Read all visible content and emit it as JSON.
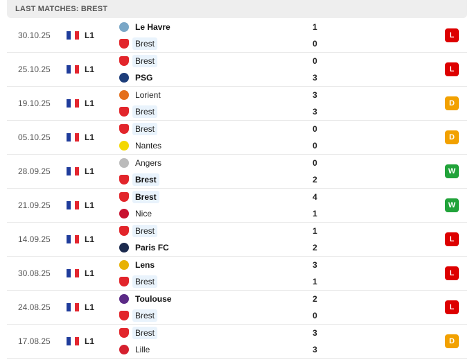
{
  "title": "LAST MATCHES: BREST",
  "colors": {
    "L": "#dd0000",
    "D": "#f2a100",
    "W": "#21a33a",
    "highlight": "#e9f3fc"
  },
  "matches": [
    {
      "date": "30.10.25",
      "comp": "L1",
      "home": {
        "name": "Le Havre",
        "score": "1",
        "logo": "#7aa7c7",
        "bold": true
      },
      "away": {
        "name": "Brest",
        "score": "0",
        "logo": "brest",
        "bold": false
      },
      "result": "L"
    },
    {
      "date": "25.10.25",
      "comp": "L1",
      "home": {
        "name": "Brest",
        "score": "0",
        "logo": "brest",
        "bold": false
      },
      "away": {
        "name": "PSG",
        "score": "3",
        "logo": "#1d3d7a",
        "bold": true
      },
      "result": "L"
    },
    {
      "date": "19.10.25",
      "comp": "L1",
      "home": {
        "name": "Lorient",
        "score": "3",
        "logo": "#e46f1c",
        "bold": false
      },
      "away": {
        "name": "Brest",
        "score": "3",
        "logo": "brest",
        "bold": false
      },
      "result": "D"
    },
    {
      "date": "05.10.25",
      "comp": "L1",
      "home": {
        "name": "Brest",
        "score": "0",
        "logo": "brest",
        "bold": false
      },
      "away": {
        "name": "Nantes",
        "score": "0",
        "logo": "#f4d800",
        "bold": false
      },
      "result": "D"
    },
    {
      "date": "28.09.25",
      "comp": "L1",
      "home": {
        "name": "Angers",
        "score": "0",
        "logo": "#bbbbbb",
        "bold": false
      },
      "away": {
        "name": "Brest",
        "score": "2",
        "logo": "brest",
        "bold": true
      },
      "result": "W"
    },
    {
      "date": "21.09.25",
      "comp": "L1",
      "home": {
        "name": "Brest",
        "score": "4",
        "logo": "brest",
        "bold": true
      },
      "away": {
        "name": "Nice",
        "score": "1",
        "logo": "#c8102e",
        "bold": false
      },
      "result": "W"
    },
    {
      "date": "14.09.25",
      "comp": "L1",
      "home": {
        "name": "Brest",
        "score": "1",
        "logo": "brest",
        "bold": false
      },
      "away": {
        "name": "Paris FC",
        "score": "2",
        "logo": "#1b2a4e",
        "bold": true
      },
      "result": "L"
    },
    {
      "date": "30.08.25",
      "comp": "L1",
      "home": {
        "name": "Lens",
        "score": "3",
        "logo": "#e8b100",
        "bold": true
      },
      "away": {
        "name": "Brest",
        "score": "1",
        "logo": "brest",
        "bold": false
      },
      "result": "L"
    },
    {
      "date": "24.08.25",
      "comp": "L1",
      "home": {
        "name": "Toulouse",
        "score": "2",
        "logo": "#5b2a86",
        "bold": true
      },
      "away": {
        "name": "Brest",
        "score": "0",
        "logo": "brest",
        "bold": false
      },
      "result": "L"
    },
    {
      "date": "17.08.25",
      "comp": "L1",
      "home": {
        "name": "Brest",
        "score": "3",
        "logo": "brest",
        "bold": false
      },
      "away": {
        "name": "Lille",
        "score": "3",
        "logo": "#d5202e",
        "bold": false
      },
      "result": "D"
    }
  ]
}
